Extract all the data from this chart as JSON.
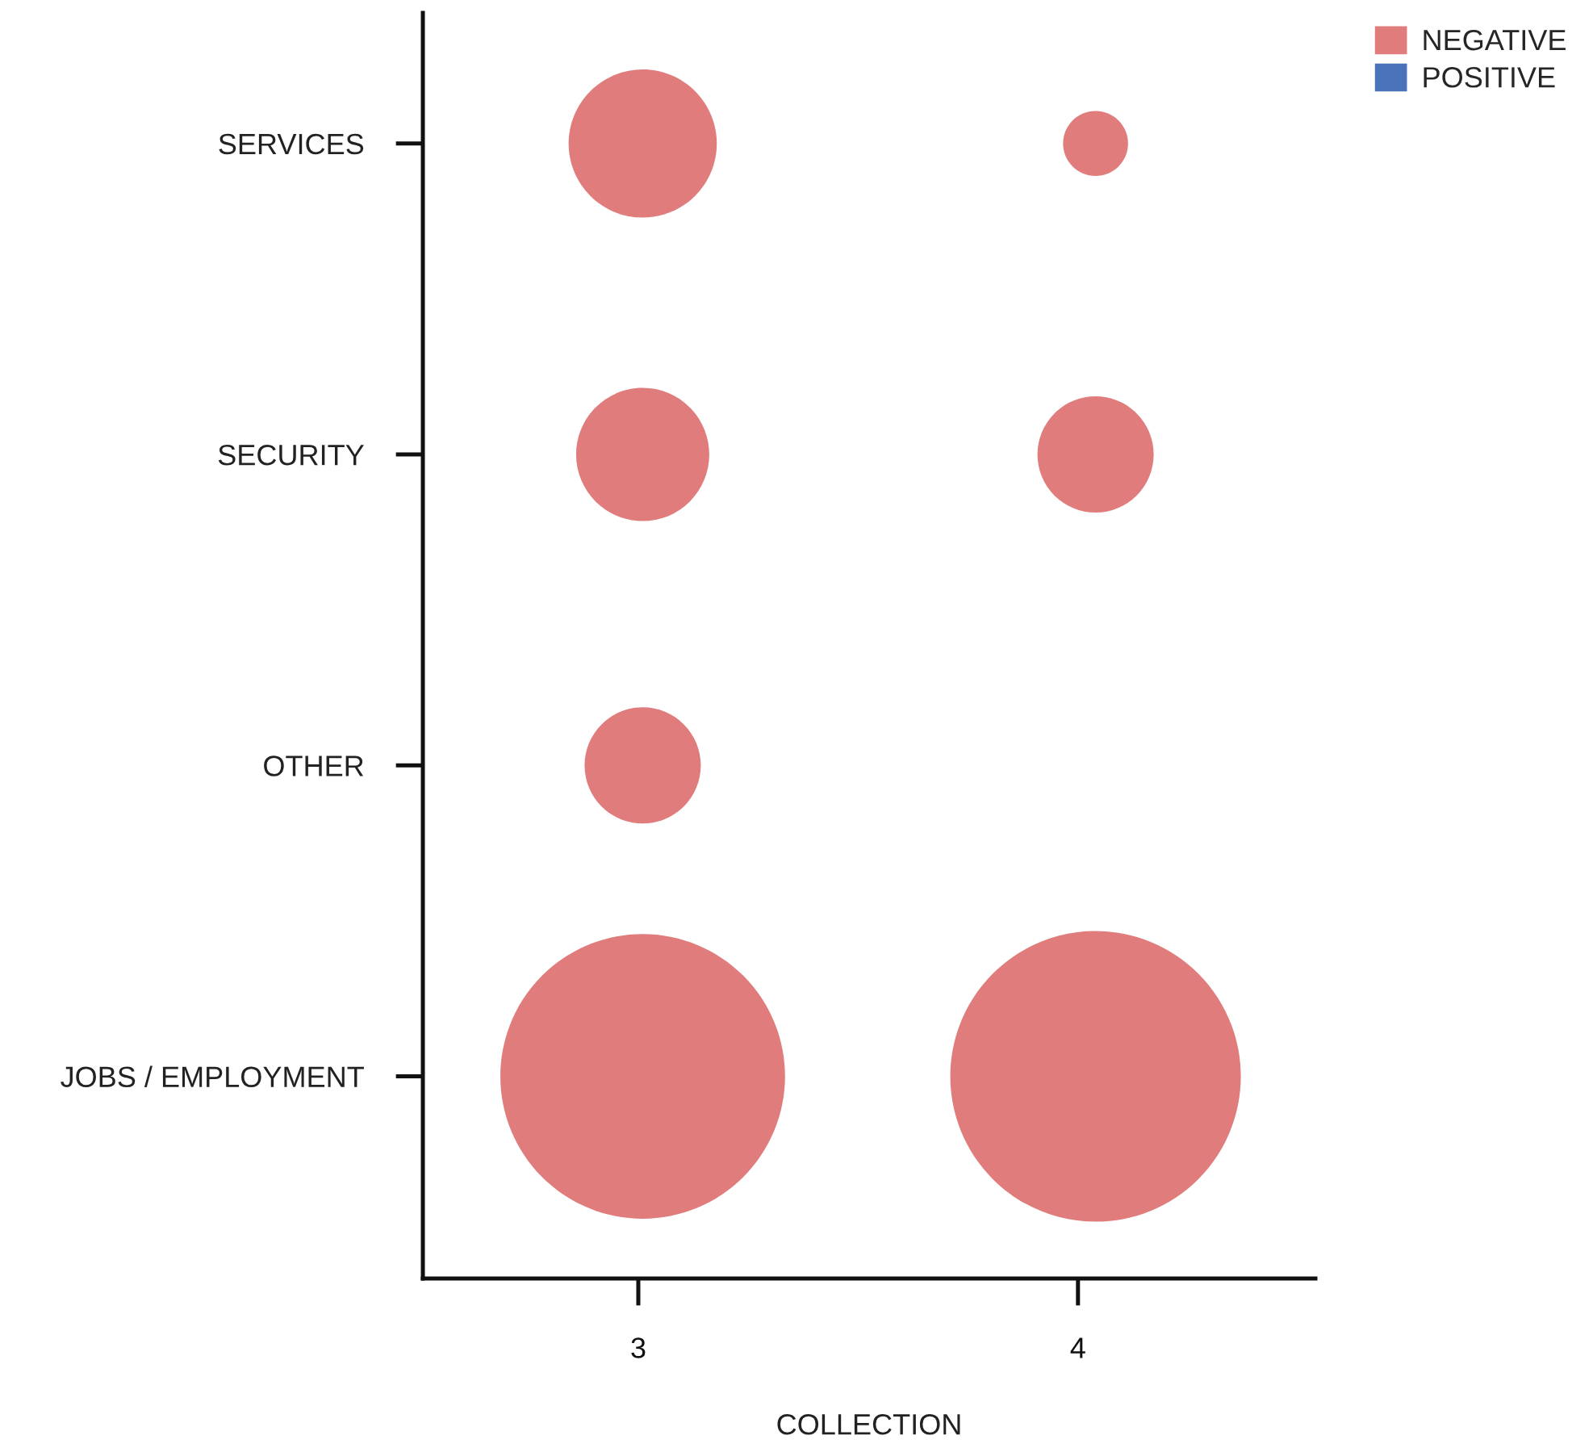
{
  "chart_data": {
    "type": "bubble",
    "orientation": "horizontal",
    "xlabel": "COLLECTION",
    "categories": [
      "SERVICES",
      "SECURITY",
      "OTHER",
      "JOBS / EMPLOYMENT"
    ],
    "xlim": [
      2.51,
      4.54
    ],
    "xticks": [
      3,
      4
    ],
    "series": [
      {
        "name": "NEGATIVE",
        "color": "#e07c7c",
        "values": [
          3.01,
          3.01,
          3.01,
          3.01
        ],
        "sizes": [
          0.26,
          0.21,
          0.16,
          0.96
        ]
      },
      {
        "color": "#e07c7c",
        "values": [
          4.04,
          4.04,
          null,
          4.04
        ],
        "sizes": [
          0.05,
          0.16,
          null,
          1
        ]
      },
      {
        "name": "POSITIVE",
        "color": "#4a72b8",
        "values": [
          null,
          null,
          null,
          null
        ],
        "sizes": [
          null,
          null,
          null,
          null
        ]
      }
    ],
    "legend": "top right",
    "grid": false
  }
}
